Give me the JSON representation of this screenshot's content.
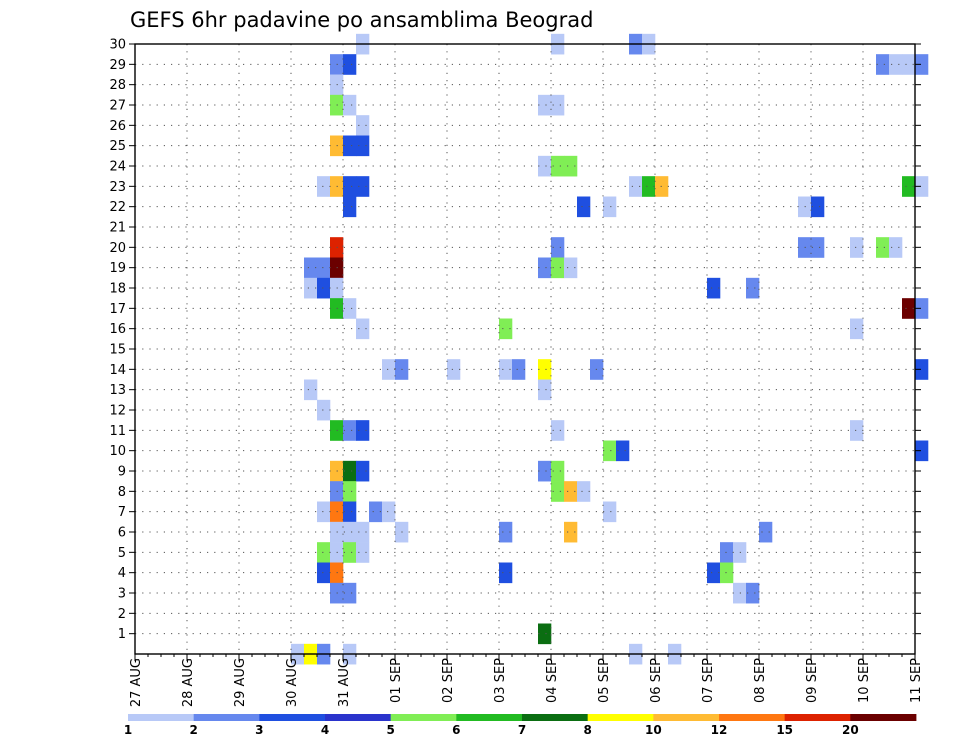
{
  "chart_data": {
    "type": "heatmap",
    "title": "GEFS 6hr padavine po ansamblima Beograd",
    "y_ticks": [
      "1",
      "2",
      "3",
      "4",
      "5",
      "6",
      "7",
      "8",
      "9",
      "10",
      "11",
      "12",
      "13",
      "14",
      "15",
      "16",
      "17",
      "18",
      "19",
      "20",
      "21",
      "22",
      "23",
      "24",
      "25",
      "26",
      "27",
      "28",
      "29",
      "30"
    ],
    "x_ticks": [
      "27 AUG",
      "28 AUG",
      "29 AUG",
      "30 AUG",
      "31 AUG",
      "01 SEP",
      "02 SEP",
      "03 SEP",
      "04 SEP",
      "05 SEP",
      "06 SEP",
      "07 SEP",
      "08 SEP",
      "09 SEP",
      "10 SEP",
      "11 SEP"
    ],
    "x_range": [
      0,
      15
    ],
    "y_range": [
      0,
      30
    ],
    "grid": "dotted",
    "colorbar": {
      "placement": "bottom",
      "labels": [
        "1",
        "2",
        "3",
        "4",
        "5",
        "6",
        "7",
        "8",
        "10",
        "12",
        "15",
        "20"
      ],
      "colors": [
        "#b8c9f7",
        "#6688ee",
        "#1f4fe0",
        "#2a33cc",
        "#80ee55",
        "#22bb22",
        "#0b6e12",
        "#ffff00",
        "#ffbb33",
        "#ff7711",
        "#dd2200",
        "#6b0000"
      ]
    },
    "cells": [
      {
        "x": 4.25,
        "y": 30,
        "c": "#b8c9f7"
      },
      {
        "x": 8.0,
        "y": 30,
        "c": "#b8c9f7"
      },
      {
        "x": 9.5,
        "y": 30,
        "c": "#6688ee"
      },
      {
        "x": 9.75,
        "y": 30,
        "c": "#b8c9f7"
      },
      {
        "x": 3.75,
        "y": 29,
        "c": "#6688ee"
      },
      {
        "x": 4.0,
        "y": 29,
        "c": "#1f4fe0"
      },
      {
        "x": 14.25,
        "y": 29,
        "c": "#6688ee"
      },
      {
        "x": 14.5,
        "y": 29,
        "c": "#b8c9f7"
      },
      {
        "x": 14.75,
        "y": 29,
        "c": "#b8c9f7"
      },
      {
        "x": 15.0,
        "y": 29,
        "c": "#6688ee"
      },
      {
        "x": 3.75,
        "y": 28,
        "c": "#b8c9f7"
      },
      {
        "x": 3.75,
        "y": 27,
        "c": "#80ee55"
      },
      {
        "x": 4.0,
        "y": 27,
        "c": "#b8c9f7"
      },
      {
        "x": 7.75,
        "y": 27,
        "c": "#b8c9f7"
      },
      {
        "x": 8.0,
        "y": 27,
        "c": "#b8c9f7"
      },
      {
        "x": 4.25,
        "y": 26,
        "c": "#b8c9f7"
      },
      {
        "x": 3.75,
        "y": 25,
        "c": "#ffbb33"
      },
      {
        "x": 4.0,
        "y": 25,
        "c": "#1f4fe0"
      },
      {
        "x": 4.25,
        "y": 25,
        "c": "#1f4fe0"
      },
      {
        "x": 7.75,
        "y": 24,
        "c": "#b8c9f7"
      },
      {
        "x": 8.0,
        "y": 24,
        "c": "#80ee55"
      },
      {
        "x": 8.25,
        "y": 24,
        "c": "#80ee55"
      },
      {
        "x": 3.5,
        "y": 23,
        "c": "#b8c9f7"
      },
      {
        "x": 3.75,
        "y": 23,
        "c": "#ffbb33"
      },
      {
        "x": 4.0,
        "y": 23,
        "c": "#1f4fe0"
      },
      {
        "x": 4.25,
        "y": 23,
        "c": "#1f4fe0"
      },
      {
        "x": 9.5,
        "y": 23,
        "c": "#b8c9f7"
      },
      {
        "x": 9.75,
        "y": 23,
        "c": "#22bb22"
      },
      {
        "x": 10.0,
        "y": 23,
        "c": "#ffbb33"
      },
      {
        "x": 14.75,
        "y": 23,
        "c": "#22bb22"
      },
      {
        "x": 15.0,
        "y": 23,
        "c": "#b8c9f7"
      },
      {
        "x": 4.0,
        "y": 22,
        "c": "#1f4fe0"
      },
      {
        "x": 8.5,
        "y": 22,
        "c": "#1f4fe0"
      },
      {
        "x": 9.0,
        "y": 22,
        "c": "#b8c9f7"
      },
      {
        "x": 12.75,
        "y": 22,
        "c": "#b8c9f7"
      },
      {
        "x": 13.0,
        "y": 22,
        "c": "#1f4fe0"
      },
      {
        "x": 3.75,
        "y": 20,
        "c": "#dd2200"
      },
      {
        "x": 8.0,
        "y": 20,
        "c": "#6688ee"
      },
      {
        "x": 12.75,
        "y": 20,
        "c": "#6688ee"
      },
      {
        "x": 13.0,
        "y": 20,
        "c": "#6688ee"
      },
      {
        "x": 13.75,
        "y": 20,
        "c": "#b8c9f7"
      },
      {
        "x": 14.25,
        "y": 20,
        "c": "#80ee55"
      },
      {
        "x": 14.5,
        "y": 20,
        "c": "#b8c9f7"
      },
      {
        "x": 3.25,
        "y": 19,
        "c": "#6688ee"
      },
      {
        "x": 3.5,
        "y": 19,
        "c": "#6688ee"
      },
      {
        "x": 3.75,
        "y": 19,
        "c": "#6b0000"
      },
      {
        "x": 7.75,
        "y": 19,
        "c": "#6688ee"
      },
      {
        "x": 8.0,
        "y": 19,
        "c": "#80ee55"
      },
      {
        "x": 8.25,
        "y": 19,
        "c": "#b8c9f7"
      },
      {
        "x": 3.25,
        "y": 18,
        "c": "#b8c9f7"
      },
      {
        "x": 3.5,
        "y": 18,
        "c": "#1f4fe0"
      },
      {
        "x": 3.75,
        "y": 18,
        "c": "#b8c9f7"
      },
      {
        "x": 11.0,
        "y": 18,
        "c": "#1f4fe0"
      },
      {
        "x": 11.75,
        "y": 18,
        "c": "#6688ee"
      },
      {
        "x": 3.75,
        "y": 17,
        "c": "#22bb22"
      },
      {
        "x": 4.0,
        "y": 17,
        "c": "#b8c9f7"
      },
      {
        "x": 14.75,
        "y": 17,
        "c": "#6b0000"
      },
      {
        "x": 15.0,
        "y": 17,
        "c": "#6688ee"
      },
      {
        "x": 4.25,
        "y": 16,
        "c": "#b8c9f7"
      },
      {
        "x": 7.0,
        "y": 16,
        "c": "#80ee55"
      },
      {
        "x": 13.75,
        "y": 16,
        "c": "#b8c9f7"
      },
      {
        "x": 4.75,
        "y": 14,
        "c": "#b8c9f7"
      },
      {
        "x": 5.0,
        "y": 14,
        "c": "#6688ee"
      },
      {
        "x": 6.0,
        "y": 14,
        "c": "#b8c9f7"
      },
      {
        "x": 7.0,
        "y": 14,
        "c": "#b8c9f7"
      },
      {
        "x": 7.25,
        "y": 14,
        "c": "#6688ee"
      },
      {
        "x": 7.75,
        "y": 14,
        "c": "#ffff00"
      },
      {
        "x": 8.75,
        "y": 14,
        "c": "#6688ee"
      },
      {
        "x": 15.0,
        "y": 14,
        "c": "#1f4fe0"
      },
      {
        "x": 3.25,
        "y": 13,
        "c": "#b8c9f7"
      },
      {
        "x": 7.75,
        "y": 13,
        "c": "#b8c9f7"
      },
      {
        "x": 3.5,
        "y": 12,
        "c": "#b8c9f7"
      },
      {
        "x": 3.75,
        "y": 11,
        "c": "#22bb22"
      },
      {
        "x": 4.0,
        "y": 11,
        "c": "#6688ee"
      },
      {
        "x": 4.25,
        "y": 11,
        "c": "#1f4fe0"
      },
      {
        "x": 8.0,
        "y": 11,
        "c": "#b8c9f7"
      },
      {
        "x": 13.75,
        "y": 11,
        "c": "#b8c9f7"
      },
      {
        "x": 9.0,
        "y": 10,
        "c": "#80ee55"
      },
      {
        "x": 9.25,
        "y": 10,
        "c": "#1f4fe0"
      },
      {
        "x": 15.0,
        "y": 10,
        "c": "#1f4fe0"
      },
      {
        "x": 3.75,
        "y": 9,
        "c": "#ffbb33"
      },
      {
        "x": 4.0,
        "y": 9,
        "c": "#0b6e12"
      },
      {
        "x": 4.25,
        "y": 9,
        "c": "#1f4fe0"
      },
      {
        "x": 7.75,
        "y": 9,
        "c": "#6688ee"
      },
      {
        "x": 8.0,
        "y": 9,
        "c": "#80ee55"
      },
      {
        "x": 3.75,
        "y": 8,
        "c": "#6688ee"
      },
      {
        "x": 4.0,
        "y": 8,
        "c": "#80ee55"
      },
      {
        "x": 8.0,
        "y": 8,
        "c": "#80ee55"
      },
      {
        "x": 8.25,
        "y": 8,
        "c": "#ffbb33"
      },
      {
        "x": 8.5,
        "y": 8,
        "c": "#b8c9f7"
      },
      {
        "x": 3.5,
        "y": 7,
        "c": "#b8c9f7"
      },
      {
        "x": 3.75,
        "y": 7,
        "c": "#ff7711"
      },
      {
        "x": 4.0,
        "y": 7,
        "c": "#1f4fe0"
      },
      {
        "x": 4.5,
        "y": 7,
        "c": "#6688ee"
      },
      {
        "x": 4.75,
        "y": 7,
        "c": "#b8c9f7"
      },
      {
        "x": 9.0,
        "y": 7,
        "c": "#b8c9f7"
      },
      {
        "x": 3.75,
        "y": 6,
        "c": "#b8c9f7"
      },
      {
        "x": 4.0,
        "y": 6,
        "c": "#b8c9f7"
      },
      {
        "x": 4.25,
        "y": 6,
        "c": "#b8c9f7"
      },
      {
        "x": 5.0,
        "y": 6,
        "c": "#b8c9f7"
      },
      {
        "x": 7.0,
        "y": 6,
        "c": "#6688ee"
      },
      {
        "x": 8.25,
        "y": 6,
        "c": "#ffbb33"
      },
      {
        "x": 12.0,
        "y": 6,
        "c": "#6688ee"
      },
      {
        "x": 3.5,
        "y": 5,
        "c": "#80ee55"
      },
      {
        "x": 3.75,
        "y": 5,
        "c": "#b8c9f7"
      },
      {
        "x": 4.0,
        "y": 5,
        "c": "#80ee55"
      },
      {
        "x": 4.25,
        "y": 5,
        "c": "#b8c9f7"
      },
      {
        "x": 11.25,
        "y": 5,
        "c": "#6688ee"
      },
      {
        "x": 11.5,
        "y": 5,
        "c": "#b8c9f7"
      },
      {
        "x": 3.5,
        "y": 4,
        "c": "#1f4fe0"
      },
      {
        "x": 3.75,
        "y": 4,
        "c": "#ff7711"
      },
      {
        "x": 7.0,
        "y": 4,
        "c": "#1f4fe0"
      },
      {
        "x": 11.0,
        "y": 4,
        "c": "#1f4fe0"
      },
      {
        "x": 11.25,
        "y": 4,
        "c": "#80ee55"
      },
      {
        "x": 3.75,
        "y": 3,
        "c": "#6688ee"
      },
      {
        "x": 4.0,
        "y": 3,
        "c": "#6688ee"
      },
      {
        "x": 11.5,
        "y": 3,
        "c": "#b8c9f7"
      },
      {
        "x": 11.75,
        "y": 3,
        "c": "#6688ee"
      },
      {
        "x": 7.75,
        "y": 1,
        "c": "#0b6e12"
      },
      {
        "x": 3.0,
        "y": 0,
        "c": "#b8c9f7"
      },
      {
        "x": 3.25,
        "y": 0,
        "c": "#ffff00"
      },
      {
        "x": 3.5,
        "y": 0,
        "c": "#6688ee"
      },
      {
        "x": 4.0,
        "y": 0,
        "c": "#b8c9f7"
      },
      {
        "x": 9.5,
        "y": 0,
        "c": "#b8c9f7"
      },
      {
        "x": 10.25,
        "y": 0,
        "c": "#b8c9f7"
      }
    ]
  }
}
